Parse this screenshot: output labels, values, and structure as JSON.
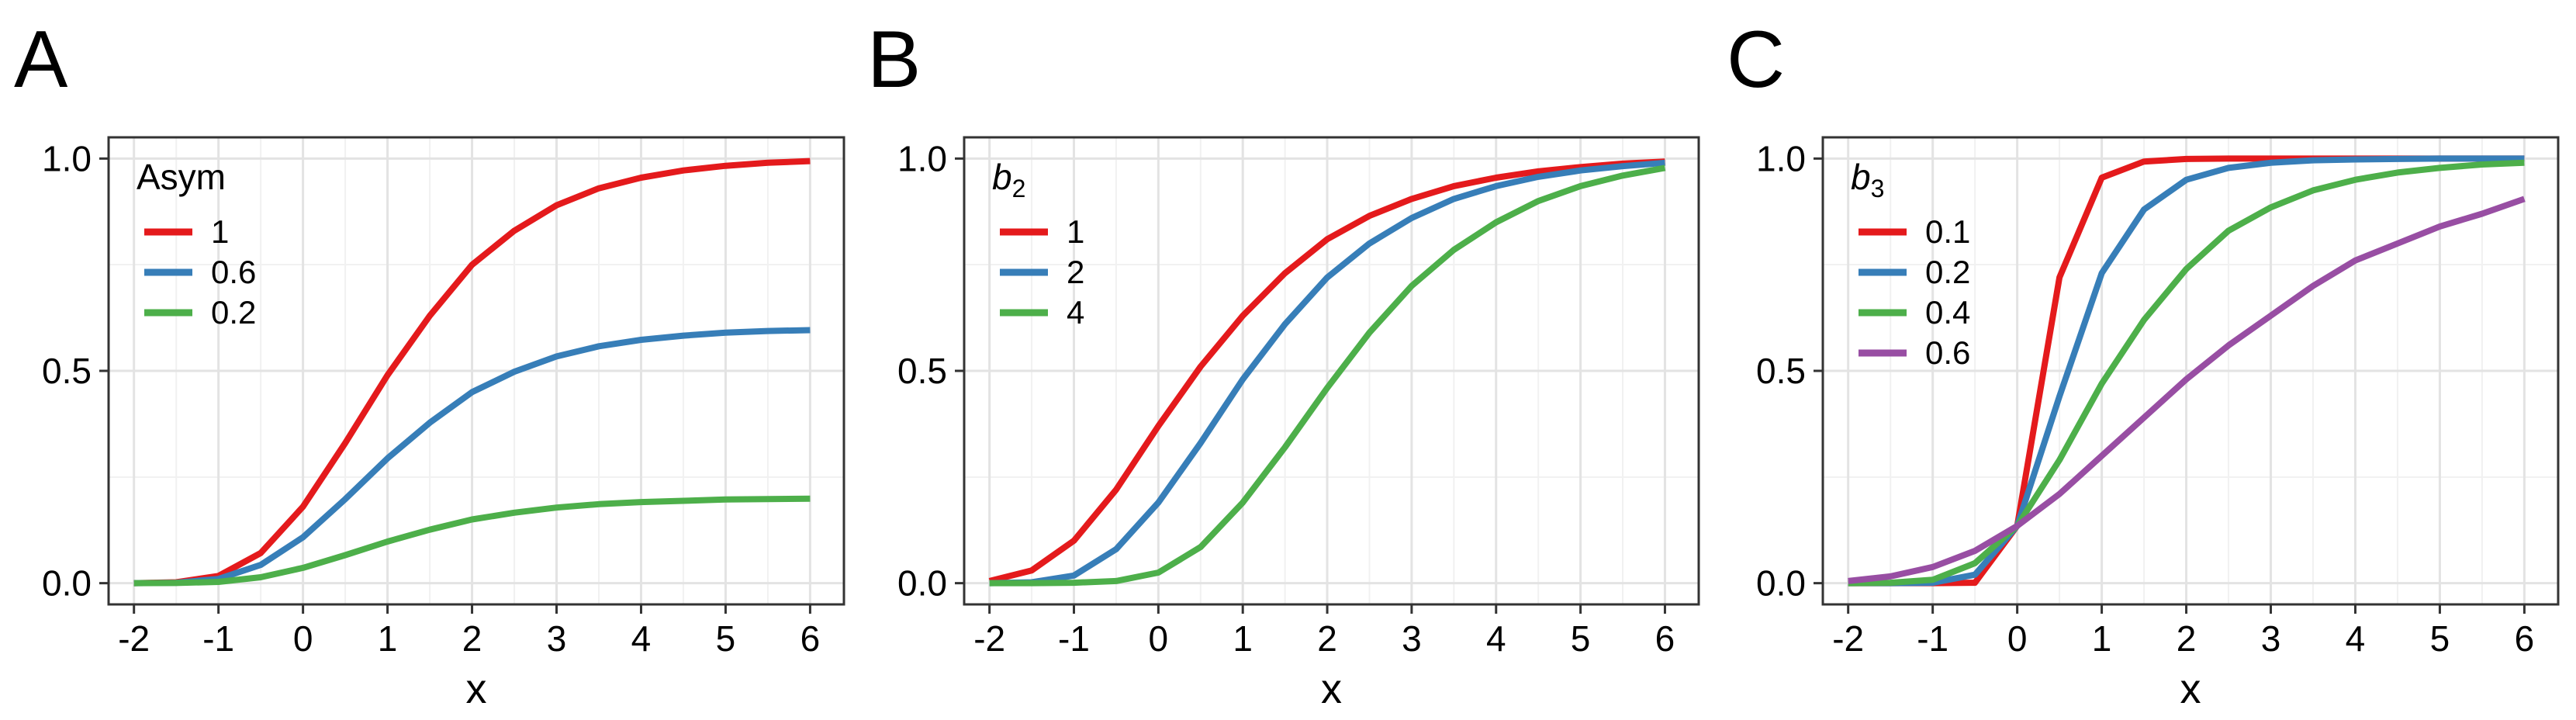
{
  "chart_data": [
    {
      "panel": "A",
      "type": "line",
      "xlabel": "x",
      "xlim": [
        -2.3,
        6.4
      ],
      "ylim": [
        -0.05,
        1.05
      ],
      "xticks": [
        "-2",
        "-1",
        "0",
        "1",
        "2",
        "3",
        "4",
        "5",
        "6"
      ],
      "yticks": [
        "0.0",
        "0.5",
        "1.0"
      ],
      "grid": true,
      "legend": {
        "title": "Asym",
        "title_style": "normal",
        "placement": "top-left"
      },
      "x": [
        -2,
        -1.5,
        -1,
        -0.5,
        0,
        0.5,
        1,
        1.5,
        2,
        2.5,
        3,
        3.5,
        4,
        4.5,
        5,
        5.5,
        6
      ],
      "series": [
        {
          "name": "1",
          "color": "#e41a1c",
          "values": [
            0.0,
            0.002,
            0.017,
            0.071,
            0.18,
            0.33,
            0.49,
            0.63,
            0.75,
            0.83,
            0.89,
            0.93,
            0.955,
            0.972,
            0.983,
            0.99,
            0.994
          ]
        },
        {
          "name": "0.6",
          "color": "#377eb8",
          "values": [
            0.0,
            0.001,
            0.01,
            0.043,
            0.108,
            0.198,
            0.294,
            0.378,
            0.45,
            0.498,
            0.534,
            0.558,
            0.573,
            0.583,
            0.59,
            0.594,
            0.596
          ]
        },
        {
          "name": "0.2",
          "color": "#4daf4a",
          "values": [
            0.0,
            0.0004,
            0.003,
            0.014,
            0.036,
            0.066,
            0.098,
            0.126,
            0.15,
            0.166,
            0.178,
            0.186,
            0.191,
            0.194,
            0.197,
            0.198,
            0.199
          ]
        }
      ]
    },
    {
      "panel": "B",
      "type": "line",
      "xlabel": "x",
      "xlim": [
        -2.3,
        6.4
      ],
      "ylim": [
        -0.05,
        1.05
      ],
      "xticks": [
        "-2",
        "-1",
        "0",
        "1",
        "2",
        "3",
        "4",
        "5",
        "6"
      ],
      "yticks": [
        "0.0",
        "0.5",
        "1.0"
      ],
      "grid": true,
      "legend": {
        "title": "b2",
        "title_base": "b",
        "title_sub": "2",
        "title_style": "italic",
        "placement": "top-left"
      },
      "x": [
        -2,
        -1.5,
        -1,
        -0.5,
        0,
        0.5,
        1,
        1.5,
        2,
        2.5,
        3,
        3.5,
        4,
        4.5,
        5,
        5.5,
        6
      ],
      "series": [
        {
          "name": "1",
          "color": "#e41a1c",
          "values": [
            0.005,
            0.03,
            0.1,
            0.22,
            0.37,
            0.51,
            0.63,
            0.73,
            0.81,
            0.865,
            0.905,
            0.935,
            0.955,
            0.97,
            0.98,
            0.988,
            0.993
          ]
        },
        {
          "name": "2",
          "color": "#377eb8",
          "values": [
            0.0,
            0.002,
            0.018,
            0.08,
            0.19,
            0.33,
            0.48,
            0.61,
            0.72,
            0.8,
            0.86,
            0.905,
            0.935,
            0.957,
            0.972,
            0.982,
            0.99
          ]
        },
        {
          "name": "4",
          "color": "#4daf4a",
          "values": [
            0.0,
            0.0,
            0.001,
            0.005,
            0.025,
            0.085,
            0.19,
            0.32,
            0.46,
            0.59,
            0.7,
            0.785,
            0.85,
            0.9,
            0.935,
            0.96,
            0.978
          ]
        }
      ]
    },
    {
      "panel": "C",
      "type": "line",
      "xlabel": "x",
      "xlim": [
        -2.3,
        6.4
      ],
      "ylim": [
        -0.05,
        1.05
      ],
      "xticks": [
        "-2",
        "-1",
        "0",
        "1",
        "2",
        "3",
        "4",
        "5",
        "6"
      ],
      "yticks": [
        "0.0",
        "0.5",
        "1.0"
      ],
      "grid": true,
      "legend": {
        "title": "b3",
        "title_base": "b",
        "title_sub": "3",
        "title_style": "italic",
        "placement": "top-left"
      },
      "x": [
        -2,
        -1.5,
        -1,
        -0.5,
        0,
        0.5,
        1,
        1.5,
        2,
        2.5,
        3,
        3.5,
        4,
        4.5,
        5,
        5.5,
        6
      ],
      "series": [
        {
          "name": "0.1",
          "color": "#e41a1c",
          "values": [
            0.0,
            0.0,
            0.0,
            0.001,
            0.135,
            0.72,
            0.955,
            0.993,
            0.999,
            1.0,
            1.0,
            1.0,
            1.0,
            1.0,
            1.0,
            1.0,
            1.0
          ]
        },
        {
          "name": "0.2",
          "color": "#377eb8",
          "values": [
            0.0,
            0.0,
            0.001,
            0.02,
            0.135,
            0.44,
            0.73,
            0.88,
            0.95,
            0.978,
            0.99,
            0.996,
            0.998,
            0.999,
            1.0,
            1.0,
            1.0
          ]
        },
        {
          "name": "0.4",
          "color": "#4daf4a",
          "values": [
            0.0,
            0.001,
            0.008,
            0.047,
            0.135,
            0.29,
            0.47,
            0.62,
            0.74,
            0.83,
            0.885,
            0.925,
            0.95,
            0.967,
            0.978,
            0.986,
            0.99
          ]
        },
        {
          "name": "0.6",
          "color": "#984ea3",
          "values": [
            0.005,
            0.016,
            0.038,
            0.076,
            0.135,
            0.21,
            0.3,
            0.39,
            0.48,
            0.56,
            0.63,
            0.7,
            0.76,
            0.8,
            0.84,
            0.87,
            0.905
          ]
        }
      ]
    }
  ]
}
